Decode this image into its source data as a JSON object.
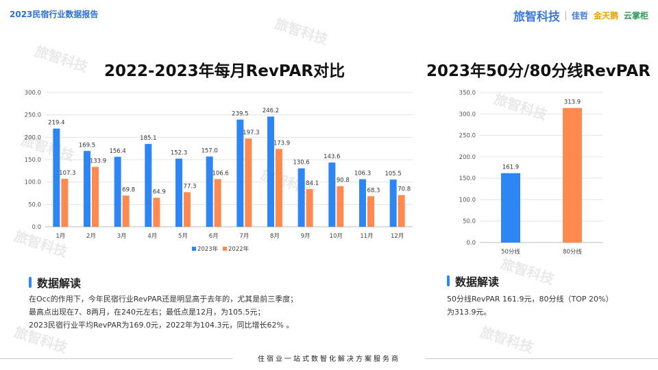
{
  "header": {
    "report_title": "2023民宿行业数据报告",
    "logos": [
      "旅智科技",
      "佳哲",
      "金天鹅",
      "云掌柜"
    ]
  },
  "colors": {
    "series_2023": "#2e86f5",
    "series_2022": "#ff8a50",
    "accent": "#2e86f5"
  },
  "chart_data": [
    {
      "type": "bar",
      "title": "2022-2023年每月RevPAR对比",
      "categories": [
        "1月",
        "2月",
        "3月",
        "4月",
        "5月",
        "6月",
        "7月",
        "8月",
        "9月",
        "10月",
        "11月",
        "12月"
      ],
      "series": [
        {
          "name": "2023年",
          "values": [
            219.4,
            169.5,
            156.4,
            185.1,
            152.3,
            157.0,
            239.5,
            246.2,
            130.6,
            143.6,
            106.3,
            105.5
          ]
        },
        {
          "name": "2022年",
          "values": [
            107.3,
            133.9,
            69.8,
            64.9,
            77.3,
            106.6,
            197.3,
            173.9,
            84.1,
            90.8,
            68.3,
            70.8
          ]
        }
      ],
      "ylim": [
        0,
        300
      ],
      "yticks": [
        "0.0",
        "50.0",
        "100.0",
        "150.0",
        "200.0",
        "250.0",
        "300.0"
      ],
      "legend": "bottom"
    },
    {
      "type": "bar",
      "title": "2023年50分/80分线RevPAR",
      "categories": [
        "50分线",
        "80分线"
      ],
      "values": [
        161.9,
        313.9
      ],
      "ylim": [
        0,
        350
      ],
      "yticks": [
        "0.0",
        "50.0",
        "100.0",
        "150.0",
        "200.0",
        "250.0",
        "300.0",
        "350.0"
      ]
    }
  ],
  "left_section": {
    "heading": "数据解读",
    "lines": [
      "在Occ的作用下，今年民宿行业RevPAR还是明显高于去年的，尤其是前三季度；",
      "最高点出现在7、8两月，在240元左右；最低点是12月，为105.5元；",
      "2023民宿行业平均RevPAR为169.0元，2022年为104.3元，同比增长62% 。"
    ]
  },
  "right_section": {
    "heading": "数据解读",
    "lines": [
      "50分线RevPAR 161.9元，80分线（TOP 20%）",
      "为313.9元。"
    ]
  },
  "footer": {
    "text": "住宿业一站式数智化解决方案服务商"
  }
}
